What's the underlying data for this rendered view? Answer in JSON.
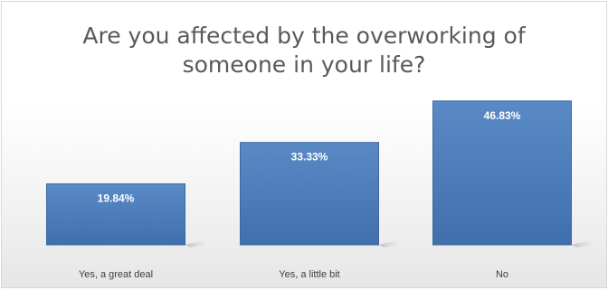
{
  "chart_data": {
    "type": "bar",
    "title": "Are you affected by the overworking of someone in your life?",
    "categories": [
      "Yes, a great deal",
      "Yes, a little bit",
      "No"
    ],
    "values": [
      19.84,
      33.33,
      46.83
    ],
    "value_labels": [
      "19.84%",
      "33.33%",
      "46.83%"
    ],
    "ylim": [
      0,
      50
    ],
    "grid": false,
    "legend": "none",
    "bar_color": "#4f81bd",
    "value_label_color": "#ffffff"
  }
}
